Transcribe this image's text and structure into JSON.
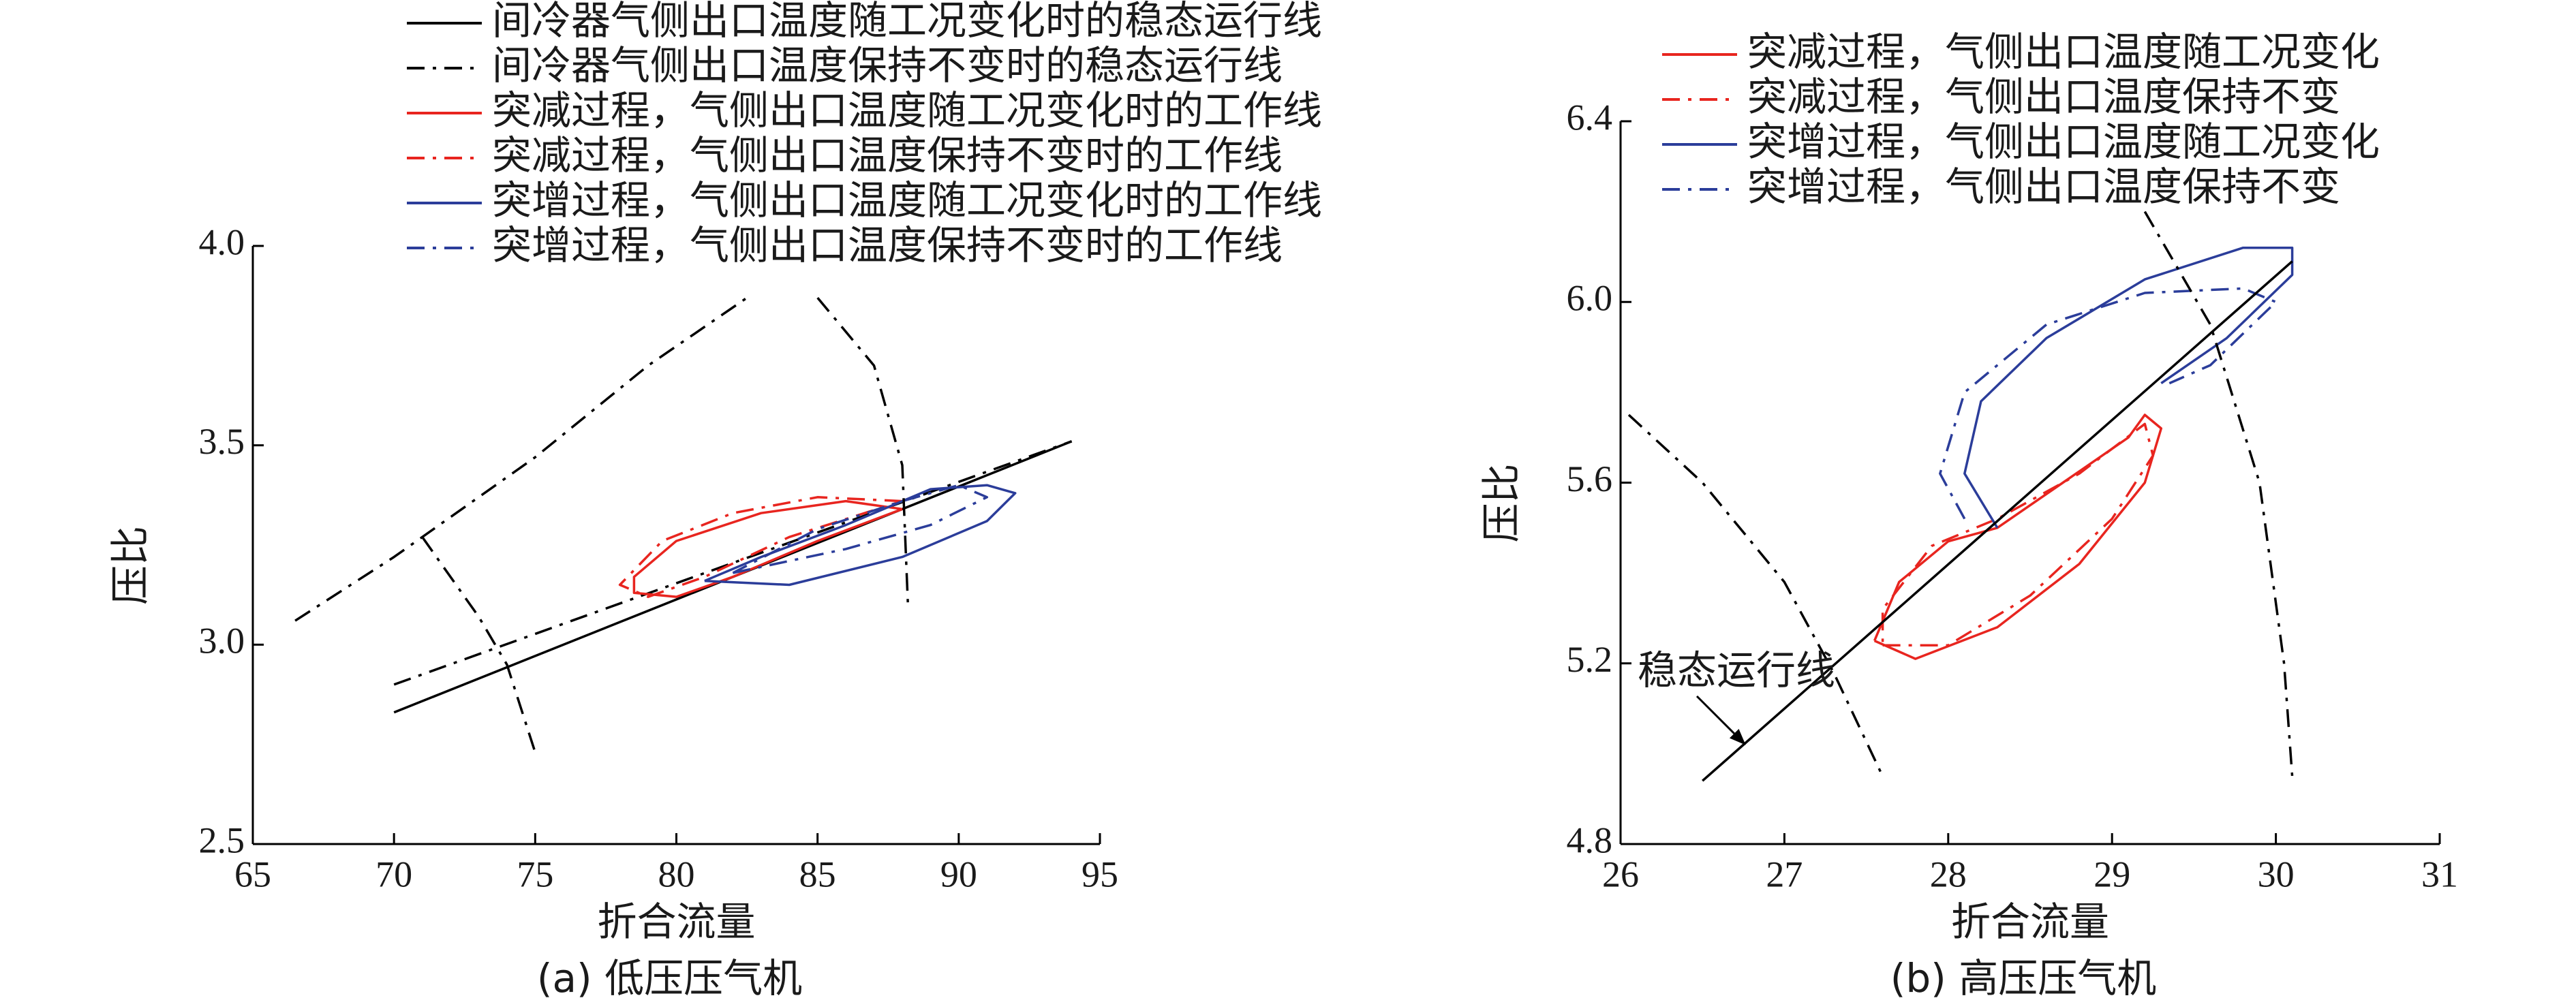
{
  "chart_data": [
    {
      "type": "line",
      "caption": "(a) 低压压气机",
      "xlabel": "折合流量",
      "ylabel": "压比",
      "xlim": [
        65,
        95
      ],
      "ylim": [
        2.5,
        4.0
      ],
      "xticks": [
        65,
        70,
        75,
        80,
        85,
        90,
        95
      ],
      "yticks": [
        2.5,
        {
          "value": 3.0,
          "label": "3.0"
        },
        3.5,
        {
          "value": 4.0,
          "label": "4.0"
        }
      ],
      "legend": "top",
      "series": [
        {
          "name": "间冷器气侧出口温度随工况变化时的稳态运行线",
          "color": "#000000",
          "style": "solid",
          "x": [
            70,
            94
          ],
          "values": [
            2.83,
            3.51
          ]
        },
        {
          "name": "间冷器气侧出口温度保持不变时的稳态运行线",
          "color": "#000000",
          "style": "dashdot",
          "x": [
            70,
            94
          ],
          "values": [
            2.9,
            3.51
          ]
        },
        {
          "name": "突减过程，气侧出口温度随工况变化时的工作线",
          "color": "#e8251f",
          "style": "solid",
          "x": [
            88,
            86,
            83,
            80,
            78.5,
            78.5,
            80,
            82,
            85,
            88
          ],
          "values": [
            3.34,
            3.36,
            3.33,
            3.26,
            3.17,
            3.13,
            3.12,
            3.17,
            3.26,
            3.34
          ]
        },
        {
          "name": "突减过程，气侧出口温度保持不变时的工作线",
          "color": "#e8251f",
          "style": "dashdot",
          "x": [
            88,
            85,
            82,
            79.5,
            78,
            79,
            81,
            84,
            88
          ],
          "values": [
            3.36,
            3.37,
            3.33,
            3.26,
            3.15,
            3.12,
            3.17,
            3.27,
            3.36
          ]
        },
        {
          "name": "突增过程，气侧出口温度随工况变化时的工作线",
          "color": "#2b3d9a",
          "style": "solid",
          "x": [
            81,
            84,
            88,
            91,
            92,
            91,
            89,
            86,
            83,
            81
          ],
          "values": [
            3.16,
            3.15,
            3.22,
            3.31,
            3.38,
            3.4,
            3.39,
            3.3,
            3.22,
            3.16
          ]
        },
        {
          "name": "突增过程，气侧出口温度保持不变时的工作线",
          "color": "#2b3d9a",
          "style": "dashdot",
          "x": [
            82,
            86,
            89,
            91,
            90,
            88,
            85,
            82
          ],
          "values": [
            3.18,
            3.24,
            3.3,
            3.37,
            3.4,
            3.36,
            3.29,
            3.18
          ]
        },
        {
          "color": "#000000",
          "style": "dashdot",
          "x": [
            66.5,
            70,
            75,
            79,
            82.5
          ],
          "values": [
            3.06,
            3.22,
            3.47,
            3.7,
            3.87
          ]
        },
        {
          "color": "#000000",
          "style": "dashdot",
          "x": [
            71,
            73,
            74,
            75
          ],
          "values": [
            3.27,
            3.07,
            2.95,
            2.73
          ]
        },
        {
          "color": "#000000",
          "style": "dashdot",
          "x": [
            85,
            87,
            88,
            88.2
          ],
          "values": [
            3.87,
            3.7,
            3.45,
            3.1
          ]
        }
      ]
    },
    {
      "type": "line",
      "caption": "(b) 高压压气机",
      "xlabel": "折合流量",
      "ylabel": "压比",
      "xlim": [
        26,
        31
      ],
      "ylim": [
        4.8,
        6.4
      ],
      "xticks": [
        26,
        27,
        28,
        29,
        30,
        31
      ],
      "yticks": [
        4.8,
        5.2,
        5.6,
        {
          "value": 6.0,
          "label": "6.0"
        },
        6.4
      ],
      "legend": "upper left",
      "annotation": "稳态运行线",
      "series": [
        {
          "name": "突减过程，气侧出口温度随工况变化",
          "color": "#e8251f",
          "style": "solid",
          "x": [
            27.55,
            27.8,
            28.3,
            28.8,
            29.2,
            29.3,
            29.2,
            29.1,
            28.7,
            28.3,
            28.0,
            27.7,
            27.55
          ],
          "values": [
            5.25,
            5.21,
            5.28,
            5.42,
            5.6,
            5.72,
            5.75,
            5.7,
            5.6,
            5.5,
            5.47,
            5.38,
            5.25
          ]
        },
        {
          "name": "突减过程，气侧出口温度保持不变",
          "color": "#e8251f",
          "style": "dashdot",
          "x": [
            27.6,
            28.0,
            28.5,
            29.0,
            29.25,
            29.2,
            28.8,
            28.3,
            27.9,
            27.6,
            27.6
          ],
          "values": [
            5.24,
            5.24,
            5.35,
            5.52,
            5.66,
            5.73,
            5.62,
            5.52,
            5.46,
            5.32,
            5.24
          ]
        },
        {
          "name": "突增过程，气侧出口温度随工况变化",
          "color": "#2b3d9a",
          "style": "solid",
          "x": [
            28.3,
            28.1,
            28.2,
            28.6,
            29.2,
            29.8,
            30.1,
            30.1,
            29.7,
            29.3
          ],
          "values": [
            5.5,
            5.62,
            5.78,
            5.92,
            6.05,
            6.12,
            6.12,
            6.06,
            5.92,
            5.82
          ]
        },
        {
          "name": "突增过程，气侧出口温度保持不变",
          "color": "#2b3d9a",
          "style": "dashdot",
          "x": [
            28.1,
            27.95,
            28.1,
            28.6,
            29.2,
            29.8,
            30.0,
            29.6,
            29.35
          ],
          "values": [
            5.52,
            5.62,
            5.8,
            5.95,
            6.02,
            6.03,
            6.0,
            5.86,
            5.82
          ]
        },
        {
          "color": "#000000",
          "style": "solid",
          "x": [
            26.5,
            30.1
          ],
          "values": [
            4.94,
            6.09
          ]
        },
        {
          "color": "#000000",
          "style": "dashdot",
          "x": [
            26.05,
            26.5,
            27.0,
            27.3,
            27.6
          ],
          "values": [
            5.75,
            5.6,
            5.38,
            5.18,
            4.95
          ]
        },
        {
          "color": "#000000",
          "style": "dashdot",
          "x": [
            29.2,
            29.6,
            29.9,
            30.05,
            30.1
          ],
          "values": [
            6.2,
            5.95,
            5.6,
            5.2,
            4.95
          ]
        }
      ]
    }
  ]
}
